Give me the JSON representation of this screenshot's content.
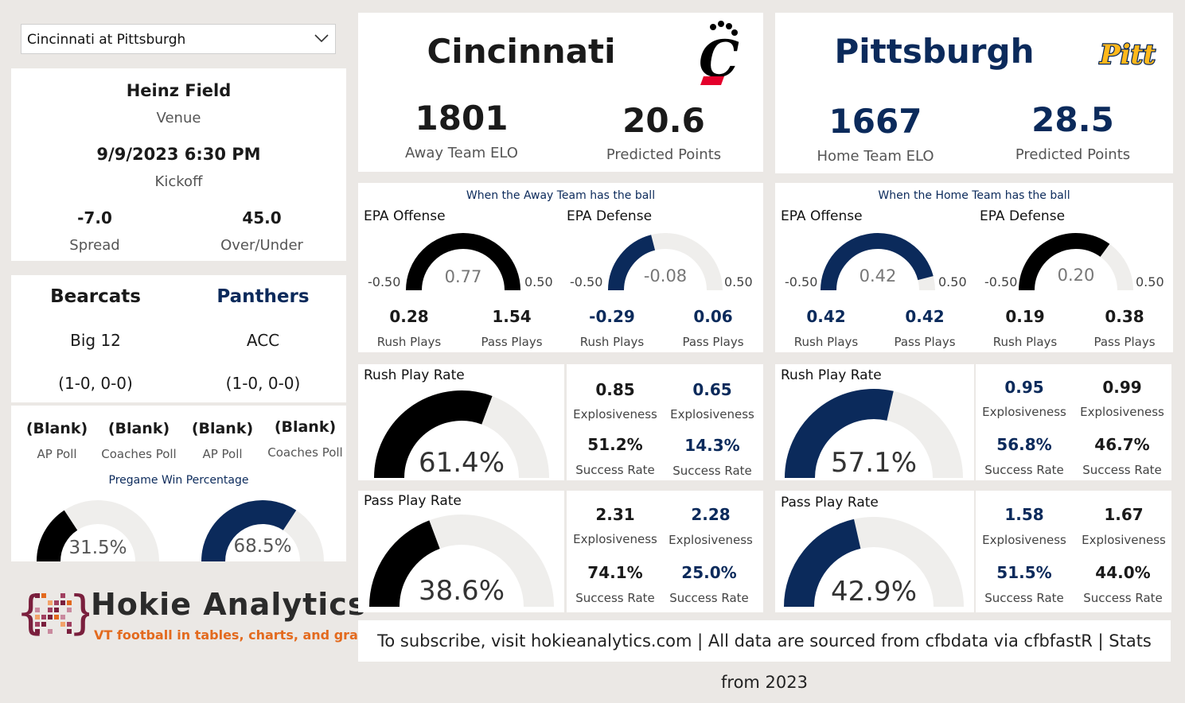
{
  "dropdown": {
    "selected": "Cincinnati at Pittsburgh"
  },
  "game": {
    "venue": "Heinz Field",
    "venue_label": "Venue",
    "kickoff": "9/9/2023 6:30 PM",
    "kickoff_label": "Kickoff",
    "spread": "-7.0",
    "spread_label": "Spread",
    "over_under": "45.0",
    "over_under_label": "Over/Under"
  },
  "teams": {
    "away": {
      "nickname": "Bearcats",
      "conference": "Big 12",
      "record": "(1-0, 0-0)"
    },
    "home": {
      "nickname": "Panthers",
      "conference": "ACC",
      "record": "(1-0, 0-0)"
    }
  },
  "polls": [
    {
      "value": "(Blank)",
      "label": "AP Poll"
    },
    {
      "value": "(Blank)",
      "label": "Coaches Poll"
    },
    {
      "value": "(Blank)",
      "label": "AP Poll"
    },
    {
      "value": "(Blank)",
      "label": "Coaches Poll"
    }
  ],
  "win_pct": {
    "title": "Pregame Win Percentage",
    "away": {
      "text": "31.5%",
      "fraction": 0.315
    },
    "home": {
      "text": "68.5%",
      "fraction": 0.685
    }
  },
  "logo": {
    "name": "Hokie Analytics",
    "tagline": "VT football in tables, charts, and graphs"
  },
  "away_header": {
    "name": "Cincinnati",
    "elo": "1801",
    "elo_label": "Away Team ELO",
    "pred": "20.6",
    "pred_label": "Predicted Points",
    "logo_text": "C"
  },
  "home_header": {
    "name": "Pittsburgh",
    "elo": "1667",
    "elo_label": "Home Team ELO",
    "pred": "28.5",
    "pred_label": "Predicted Points",
    "logo_text": "Pitt"
  },
  "epa": {
    "away_caption": "When the Away Team has the ball",
    "home_caption": "When the Home Team has the ball",
    "offense_label": "EPA Offense",
    "defense_label": "EPA Defense",
    "min_label": "-0.50",
    "max_label": "0.50",
    "rush_label": "Rush Plays",
    "pass_label": "Pass Plays",
    "away_off": {
      "value": 0.77,
      "text": "0.77",
      "rush": "0.28",
      "pass": "1.54"
    },
    "away_def": {
      "value": -0.08,
      "text": "-0.08",
      "rush": "-0.29",
      "pass": "0.06"
    },
    "home_off": {
      "value": 0.42,
      "text": "0.42",
      "rush": "0.42",
      "pass": "0.42"
    },
    "home_def": {
      "value": 0.2,
      "text": "0.20",
      "rush": "0.19",
      "pass": "0.38"
    }
  },
  "rates": {
    "rush_title": "Rush Play Rate",
    "pass_title": "Pass Play Rate",
    "explosiveness_label": "Explosiveness",
    "success_label": "Success Rate",
    "away_rush": {
      "rate_text": "61.4%",
      "fraction": 0.614,
      "off_expl": "0.85",
      "def_expl": "0.65",
      "off_succ": "51.2%",
      "def_succ": "14.3%"
    },
    "away_pass": {
      "rate_text": "38.6%",
      "fraction": 0.386,
      "off_expl": "2.31",
      "def_expl": "2.28",
      "off_succ": "74.1%",
      "def_succ": "25.0%"
    },
    "home_rush": {
      "rate_text": "57.1%",
      "fraction": 0.571,
      "off_expl": "0.95",
      "def_expl": "0.99",
      "off_succ": "56.8%",
      "def_succ": "46.7%"
    },
    "home_pass": {
      "rate_text": "42.9%",
      "fraction": 0.429,
      "off_expl": "1.58",
      "def_expl": "1.67",
      "off_succ": "51.5%",
      "def_succ": "44.0%"
    }
  },
  "colors": {
    "away": "#000000",
    "home": "#0b2a5b",
    "track": "#efeeec",
    "logo_red": "#e4002b",
    "pitt_gold": "#ffb81c"
  },
  "footer": "To subscribe, visit hokieanalytics.com | All data are sourced from cfbdata via cfbfastR | Stats from 2023"
}
